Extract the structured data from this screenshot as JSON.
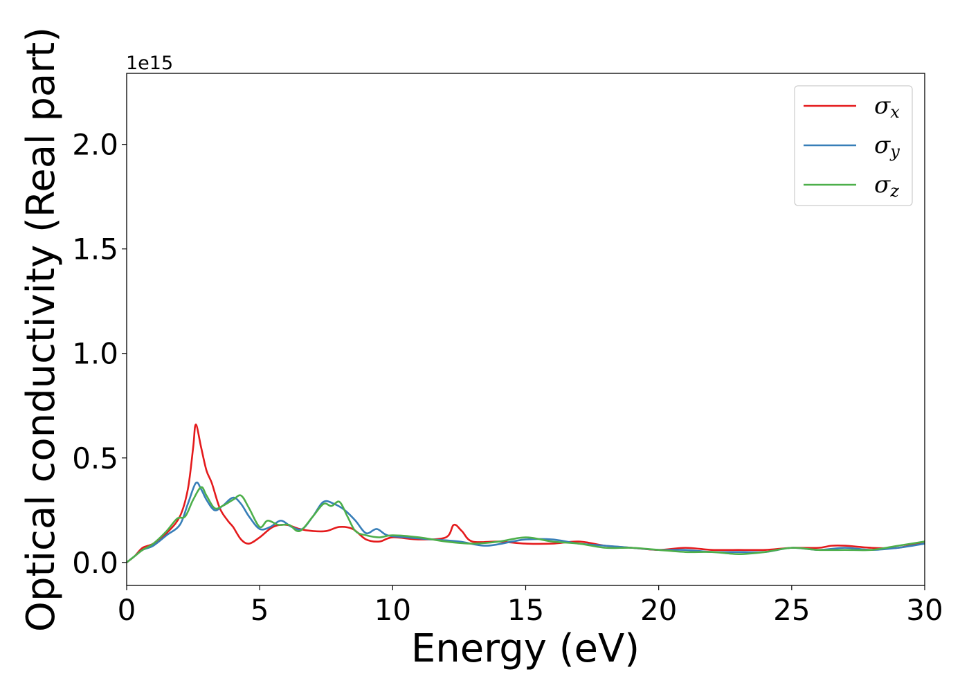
{
  "chart_data": {
    "type": "line",
    "title": "",
    "xlabel": "Energy (eV)",
    "ylabel": "Optical conductivity (Real part)",
    "y_offset_label": "1e15",
    "xlim": [
      0,
      30
    ],
    "ylim": [
      -0.11,
      2.34
    ],
    "xticks": [
      0,
      5,
      10,
      15,
      20,
      25,
      30
    ],
    "xtick_labels": [
      "0",
      "5",
      "10",
      "15",
      "20",
      "25",
      "30"
    ],
    "yticks": [
      0.0,
      0.5,
      1.0,
      1.5,
      2.0
    ],
    "ytick_labels": [
      "0.0",
      "0.5",
      "1.0",
      "1.5",
      "2.0"
    ],
    "grid": false,
    "legend_position": "top-right",
    "series": [
      {
        "name": "σx",
        "base": "σ",
        "sub": "x",
        "color": "#e41a1c",
        "x": [
          0,
          0.3,
          0.6,
          1.0,
          1.5,
          2.0,
          2.3,
          2.5,
          2.6,
          2.8,
          3.0,
          3.2,
          3.5,
          3.8,
          4.0,
          4.3,
          4.6,
          5.0,
          5.5,
          6.0,
          6.5,
          7.0,
          7.5,
          8.0,
          8.5,
          9.0,
          9.5,
          10.0,
          11.0,
          12.0,
          12.3,
          12.6,
          13.0,
          14.0,
          15.0,
          16.0,
          17.0,
          18.0,
          19.0,
          20.0,
          21.0,
          22.0,
          23.0,
          24.0,
          25.0,
          26.0,
          26.5,
          27.0,
          28.0,
          29.0,
          30.0
        ],
        "y": [
          0.0,
          0.03,
          0.07,
          0.09,
          0.14,
          0.22,
          0.35,
          0.55,
          0.66,
          0.55,
          0.44,
          0.38,
          0.26,
          0.2,
          0.17,
          0.11,
          0.09,
          0.12,
          0.17,
          0.18,
          0.16,
          0.15,
          0.15,
          0.17,
          0.16,
          0.11,
          0.1,
          0.12,
          0.11,
          0.12,
          0.18,
          0.15,
          0.1,
          0.1,
          0.09,
          0.09,
          0.1,
          0.08,
          0.07,
          0.06,
          0.07,
          0.06,
          0.06,
          0.06,
          0.07,
          0.07,
          0.08,
          0.08,
          0.07,
          0.07,
          0.1
        ]
      },
      {
        "name": "σy",
        "base": "σ",
        "sub": "y",
        "color": "#377eb8",
        "x": [
          0,
          0.3,
          0.6,
          1.0,
          1.5,
          2.0,
          2.3,
          2.6,
          2.8,
          3.0,
          3.3,
          3.6,
          4.0,
          4.3,
          4.6,
          5.0,
          5.4,
          5.8,
          6.2,
          6.6,
          7.0,
          7.4,
          7.8,
          8.2,
          8.6,
          9.0,
          9.4,
          9.8,
          10.5,
          11.5,
          12.5,
          13.5,
          14.5,
          15.0,
          16.0,
          17.0,
          18.0,
          19.0,
          20.0,
          21.0,
          22.0,
          23.0,
          24.0,
          25.0,
          26.0,
          27.0,
          28.0,
          29.0,
          30.0
        ],
        "y": [
          0.0,
          0.03,
          0.06,
          0.08,
          0.13,
          0.18,
          0.28,
          0.38,
          0.35,
          0.3,
          0.25,
          0.27,
          0.31,
          0.28,
          0.22,
          0.16,
          0.17,
          0.2,
          0.17,
          0.16,
          0.22,
          0.29,
          0.28,
          0.25,
          0.2,
          0.14,
          0.16,
          0.13,
          0.12,
          0.11,
          0.1,
          0.08,
          0.1,
          0.11,
          0.11,
          0.09,
          0.08,
          0.07,
          0.06,
          0.06,
          0.05,
          0.05,
          0.05,
          0.07,
          0.06,
          0.07,
          0.06,
          0.07,
          0.09
        ]
      },
      {
        "name": "σz",
        "base": "σ",
        "sub": "z",
        "color": "#4daf4a",
        "x": [
          0,
          0.3,
          0.6,
          1.0,
          1.5,
          1.9,
          2.2,
          2.5,
          2.8,
          3.0,
          3.3,
          3.6,
          4.0,
          4.3,
          4.6,
          5.0,
          5.3,
          5.7,
          6.1,
          6.5,
          7.0,
          7.4,
          7.7,
          8.0,
          8.3,
          8.6,
          9.0,
          9.5,
          10.0,
          11.0,
          12.0,
          13.0,
          14.0,
          15.0,
          16.0,
          17.0,
          18.0,
          19.0,
          20.0,
          21.0,
          22.0,
          23.0,
          24.0,
          25.0,
          26.0,
          27.0,
          28.0,
          29.0,
          30.0
        ],
        "y": [
          0.0,
          0.03,
          0.06,
          0.09,
          0.15,
          0.21,
          0.22,
          0.3,
          0.36,
          0.32,
          0.26,
          0.27,
          0.3,
          0.32,
          0.26,
          0.17,
          0.2,
          0.18,
          0.18,
          0.15,
          0.22,
          0.28,
          0.27,
          0.29,
          0.22,
          0.15,
          0.13,
          0.12,
          0.13,
          0.12,
          0.1,
          0.09,
          0.1,
          0.12,
          0.1,
          0.09,
          0.07,
          0.07,
          0.06,
          0.05,
          0.05,
          0.04,
          0.05,
          0.07,
          0.06,
          0.06,
          0.06,
          0.08,
          0.1
        ]
      }
    ]
  }
}
